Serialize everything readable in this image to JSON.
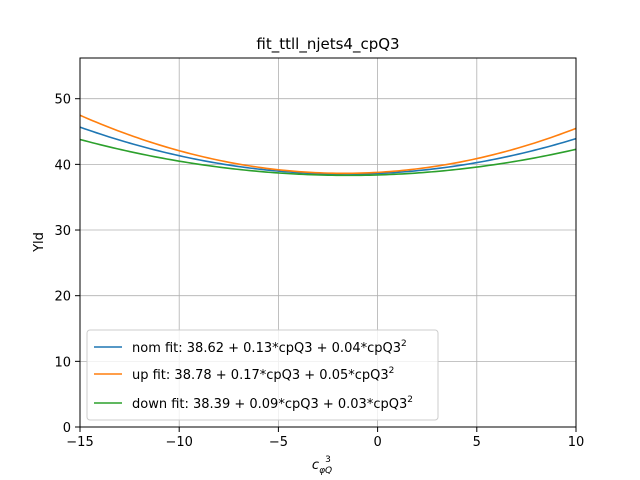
{
  "chart_data": {
    "type": "line",
    "title": "fit_ttll_njets4_cpQ3",
    "xlabel_base": "c",
    "xlabel_sub": "φQ",
    "xlabel_sup": "3",
    "ylabel": "Yld",
    "xlim": [
      -15,
      10
    ],
    "ylim": [
      0,
      56.2
    ],
    "xticks": [
      -15,
      -10,
      -5,
      0,
      5,
      10
    ],
    "xtick_labels": [
      "−15",
      "−10",
      "−5",
      "0",
      "5",
      "10"
    ],
    "yticks": [
      0,
      10,
      20,
      30,
      40,
      50
    ],
    "ytick_labels": [
      "0",
      "10",
      "20",
      "30",
      "40",
      "50"
    ],
    "grid": true,
    "legend_position": "lower-left",
    "series": [
      {
        "name": "nom fit: 38.62 + 0.13*cpQ3 + 0.04*cpQ3",
        "name_sup": "2",
        "color": "#1f77b4",
        "c0": 38.62,
        "c1": 0.13,
        "c2": 0.04
      },
      {
        "name": "up fit: 38.78 + 0.17*cpQ3 + 0.05*cpQ3",
        "name_sup": "2",
        "color": "#ff7f0e",
        "c0": 38.78,
        "c1": 0.17,
        "c2": 0.05
      },
      {
        "name": "down fit: 38.39 + 0.09*cpQ3 + 0.03*cpQ3",
        "name_sup": "2",
        "color": "#2ca02c",
        "c0": 38.39,
        "c1": 0.09,
        "c2": 0.03
      }
    ]
  }
}
